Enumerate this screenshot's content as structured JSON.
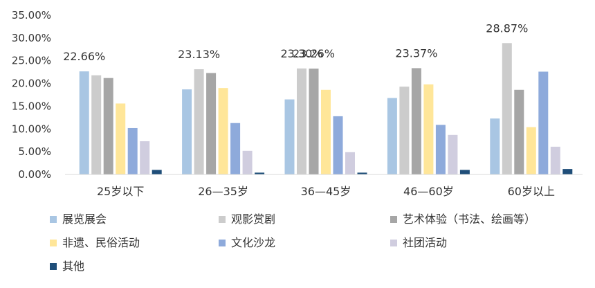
{
  "chart_data": {
    "type": "bar",
    "title": "",
    "xlabel": "",
    "ylabel": "",
    "ylim": [
      0,
      35
    ],
    "y_ticks": [
      "0.00%",
      "5.00%",
      "10.00%",
      "15.00%",
      "20.00%",
      "25.00%",
      "30.00%",
      "35.00%"
    ],
    "grid": false,
    "legend_position": "bottom",
    "categories": [
      "25岁以下",
      "26—35岁",
      "36—45岁",
      "46—60岁",
      "60岁以上"
    ],
    "series": [
      {
        "name": "展览展会",
        "color": "#a9c6e3",
        "values": [
          22.66,
          18.7,
          16.5,
          16.8,
          12.3
        ]
      },
      {
        "name": "观影赏剧",
        "color": "#cccccc",
        "values": [
          21.8,
          23.13,
          23.3,
          19.3,
          28.87
        ]
      },
      {
        "name": "艺术体验（书法、绘画等）",
        "color": "#a6a6a6",
        "values": [
          21.2,
          22.3,
          23.26,
          23.37,
          18.6
        ]
      },
      {
        "name": "非遗、民俗活动",
        "color": "#ffe699",
        "values": [
          15.6,
          19.0,
          18.6,
          19.8,
          10.4
        ]
      },
      {
        "name": "文化沙龙",
        "color": "#8eaadb",
        "values": [
          10.2,
          11.3,
          12.8,
          10.9,
          22.6
        ]
      },
      {
        "name": "社团活动",
        "color": "#d0cddf",
        "values": [
          7.3,
          5.2,
          4.9,
          8.7,
          6.1
        ]
      },
      {
        "name": "其他",
        "color": "#1f4e79",
        "values": [
          1.0,
          0.4,
          0.4,
          1.0,
          1.2
        ]
      }
    ],
    "data_labels": [
      {
        "category": "25岁以下",
        "series": "展览展会",
        "text": "22.66%"
      },
      {
        "category": "26—35岁",
        "series": "观影赏剧",
        "text": "23.13%"
      },
      {
        "category": "36—45岁",
        "series": "观影赏剧",
        "text": "23.30%"
      },
      {
        "category": "36—45岁",
        "series": "艺术体验（书法、绘画等）",
        "text": "23.26%"
      },
      {
        "category": "46—60岁",
        "series": "艺术体验（书法、绘画等）",
        "text": "23.37%"
      },
      {
        "category": "60岁以上",
        "series": "观影赏剧",
        "text": "28.87%"
      }
    ]
  }
}
